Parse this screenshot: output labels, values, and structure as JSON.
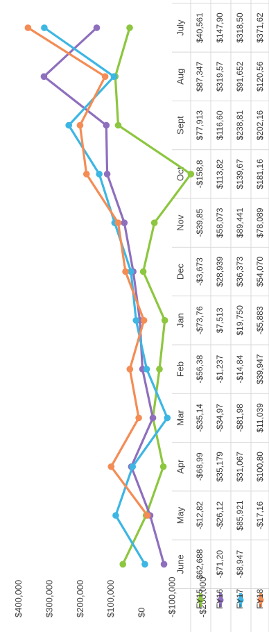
{
  "chart_data": {
    "type": "line",
    "orientation": "rotated-90",
    "categories": [
      "July",
      "Aug",
      "Sept",
      "Oct",
      "Nov",
      "Dec",
      "Jan",
      "Feb",
      "Mar",
      "Apr",
      "May",
      "June"
    ],
    "ylim": [
      -200000,
      400000
    ],
    "yticks": [
      -200000,
      -100000,
      0,
      100000,
      200000,
      300000,
      400000
    ],
    "ytick_labels": [
      "-$200,000",
      "-$100,000",
      "$0",
      "$100,000",
      "$200,000",
      "$300,000",
      "$400,000"
    ],
    "grid": false,
    "legend": "bottom (as data table row headers)",
    "series": [
      {
        "name": "FY15",
        "color": "#8dc63f",
        "values": [
          40561,
          87347,
          77913,
          -158800,
          -39850,
          -3673,
          -73760,
          -56380,
          -35140,
          -68990,
          -12820,
          62688
        ],
        "table_labels": [
          "$40,561",
          "$87,347",
          "$77,913",
          "-$158,8",
          "-$39,85",
          "-$3,673",
          "-$73,76",
          "-$56,38",
          "-$35,14",
          "-$68,99",
          "-$12,82",
          "$62,688"
        ]
      },
      {
        "name": "FY16",
        "color": "#8e6fbd",
        "values": [
          147900,
          319570,
          116600,
          113820,
          58073,
          28939,
          7513,
          -1237,
          -34970,
          35179,
          -26120,
          -71200
        ],
        "table_labels": [
          "$147,90",
          "$319,57",
          "$116,60",
          "$113,82",
          "$58,073",
          "$28,939",
          "$7,513",
          "-$1,237",
          "-$34,97",
          "$35,179",
          "-$26,12",
          "-$71,20"
        ]
      },
      {
        "name": "FY17",
        "color": "#3db6e3",
        "values": [
          318500,
          91652,
          238810,
          139670,
          89441,
          36373,
          19750,
          -14840,
          -81980,
          31067,
          85921,
          -8947
        ],
        "table_labels": [
          "$318,50",
          "$91,652",
          "$238,81",
          "$139,67",
          "$89,441",
          "$36,373",
          "$19,750",
          "-$14,84",
          "-$81,98",
          "$31,067",
          "$85,921",
          "-$8,947"
        ]
      },
      {
        "name": "FY18",
        "color": "#f48c55",
        "values": [
          371620,
          120560,
          202160,
          181160,
          78089,
          54070,
          -5883,
          39947,
          11039,
          100800,
          -17160,
          null
        ],
        "table_labels": [
          "$371,62",
          "$120,56",
          "$202,16",
          "$181,16",
          "$78,089",
          "$54,070",
          "-$5,883",
          "$39,947",
          "$11,039",
          "$100,80",
          "-$17,16",
          ""
        ]
      }
    ]
  }
}
